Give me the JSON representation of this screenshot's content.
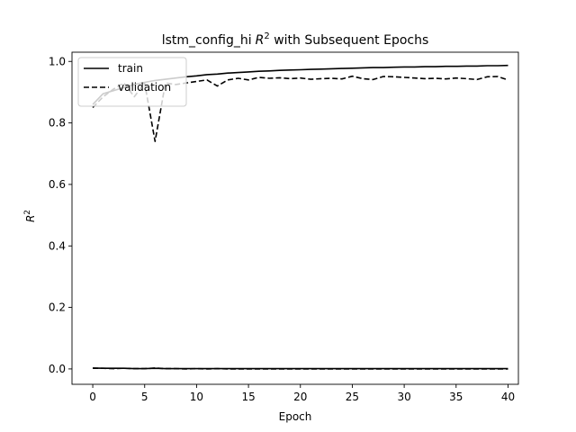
{
  "chart_data": {
    "type": "line",
    "title_prefix": "lstm_config_hi",
    "title_r": "R",
    "title_sup": "2",
    "title_suffix": " with Subsequent Epochs",
    "xlabel": "Epoch",
    "ylabel_r": "R",
    "ylabel_sup": "2",
    "xlim": [
      -2,
      41
    ],
    "ylim": [
      -0.05,
      1.03
    ],
    "xticks": [
      0,
      5,
      10,
      15,
      20,
      25,
      30,
      35,
      40
    ],
    "yticks": [
      0.0,
      0.2,
      0.4,
      0.6,
      0.8,
      1.0
    ],
    "ytick_labels": [
      "0.0",
      "0.2",
      "0.4",
      "0.6",
      "0.8",
      "1.0"
    ],
    "legend_position": "top-left",
    "line_color": "#000000",
    "x": [
      0,
      1,
      2,
      3,
      4,
      5,
      6,
      7,
      8,
      9,
      10,
      11,
      12,
      13,
      14,
      15,
      16,
      17,
      18,
      19,
      20,
      21,
      22,
      23,
      24,
      25,
      26,
      27,
      28,
      29,
      30,
      31,
      32,
      33,
      34,
      35,
      36,
      37,
      38,
      39,
      40
    ],
    "series": [
      {
        "name": "train",
        "style": "solid",
        "values": [
          0.86,
          0.895,
          0.905,
          0.915,
          0.925,
          0.932,
          0.938,
          0.942,
          0.946,
          0.95,
          0.953,
          0.957,
          0.959,
          0.962,
          0.964,
          0.966,
          0.968,
          0.969,
          0.971,
          0.972,
          0.973,
          0.974,
          0.975,
          0.976,
          0.977,
          0.978,
          0.979,
          0.98,
          0.98,
          0.981,
          0.982,
          0.982,
          0.983,
          0.983,
          0.984,
          0.984,
          0.985,
          0.985,
          0.986,
          0.986,
          0.987
        ]
      },
      {
        "name": "validation",
        "style": "dashed",
        "values": [
          0.85,
          0.885,
          0.91,
          0.93,
          0.885,
          0.93,
          0.74,
          0.93,
          0.925,
          0.93,
          0.935,
          0.94,
          0.92,
          0.94,
          0.945,
          0.94,
          0.948,
          0.945,
          0.947,
          0.944,
          0.946,
          0.942,
          0.944,
          0.945,
          0.943,
          0.952,
          0.944,
          0.941,
          0.951,
          0.95,
          0.948,
          0.946,
          0.944,
          0.945,
          0.943,
          0.946,
          0.944,
          0.941,
          0.95,
          0.951,
          0.94
        ]
      },
      {
        "name": "",
        "style": "solid",
        "values": [
          0.003,
          0.002,
          0.002,
          0.002,
          0.001,
          0.001,
          0.002,
          0.001,
          0.001,
          0.001,
          0.001,
          0.001,
          0.001,
          0.001,
          0.001,
          0.001,
          0.001,
          0.001,
          0.001,
          0.001,
          0.001,
          0.001,
          0.001,
          0.001,
          0.001,
          0.001,
          0.001,
          0.001,
          0.001,
          0.001,
          0.001,
          0.001,
          0.001,
          0.001,
          0.001,
          0.001,
          0.001,
          0.001,
          0.001,
          0.001,
          0.001
        ]
      },
      {
        "name": "",
        "style": "dashed",
        "values": [
          0.002,
          0.002,
          0.001,
          0.002,
          0.001,
          0.001,
          0.003,
          0.001,
          0.001,
          0.0,
          0.001,
          0.0,
          0.001,
          0.0,
          0.0,
          0.0,
          0.0,
          0.0,
          0.0,
          0.0,
          0.0,
          0.0,
          0.0,
          0.0,
          0.0,
          0.0,
          0.0,
          0.0,
          0.0,
          0.0,
          0.0,
          0.0,
          0.0,
          0.0,
          0.0,
          0.0,
          0.0,
          0.0,
          0.0,
          0.0,
          0.0
        ]
      }
    ]
  }
}
